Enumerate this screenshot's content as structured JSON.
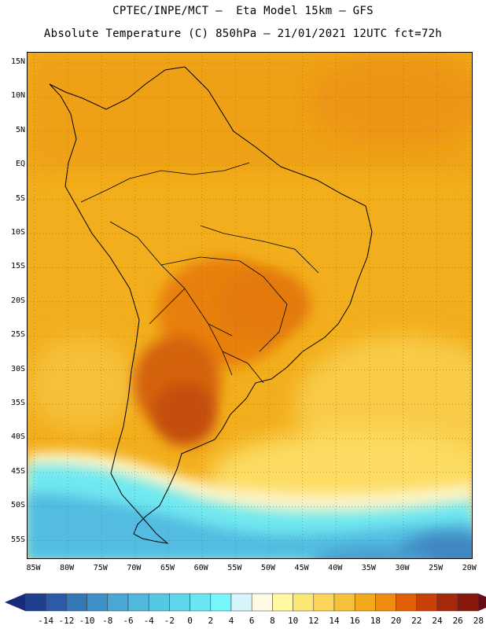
{
  "header": {
    "line1": "CPTEC/INPE/MCT –  Eta Model 15km – GFS",
    "line2": "Absolute Temperature (C) 850hPa – 21/01/2021 12UTC fct=72h"
  },
  "map": {
    "lat_labels": [
      "15N",
      "10N",
      "5N",
      "EQ",
      "5S",
      "10S",
      "15S",
      "20S",
      "25S",
      "30S",
      "35S",
      "40S",
      "45S",
      "50S",
      "55S"
    ],
    "lon_labels": [
      "85W",
      "80W",
      "75W",
      "70W",
      "65W",
      "60W",
      "55W",
      "50W",
      "45W",
      "40W",
      "35W",
      "30W",
      "25W",
      "20W"
    ],
    "lat_values": [
      15,
      10,
      5,
      0,
      -5,
      -10,
      -15,
      -20,
      -25,
      -30,
      -35,
      -40,
      -45,
      -50,
      -55
    ],
    "lon_values": [
      -85,
      -80,
      -75,
      -70,
      -65,
      -60,
      -55,
      -50,
      -45,
      -40,
      -35,
      -30,
      -25,
      -20
    ],
    "extent": {
      "lon_min": -86,
      "lon_max": -19.5,
      "lat_min": -57.8,
      "lat_max": 16.5
    }
  },
  "legend": {
    "labels": [
      "-14",
      "-12",
      "-10",
      "-8",
      "-6",
      "-4",
      "-2",
      "0",
      "2",
      "4",
      "6",
      "8",
      "10",
      "12",
      "14",
      "16",
      "18",
      "20",
      "22",
      "24",
      "26",
      "28"
    ],
    "colors": [
      "#1f3f8f",
      "#2a5aa8",
      "#3578b8",
      "#3f90c6",
      "#4aa6d2",
      "#50b8dc",
      "#56c8e4",
      "#5ed6ec",
      "#6ae6f2",
      "#76f6f8",
      "#d6f6fc",
      "#fefae4",
      "#fff8a0",
      "#fde678",
      "#fcd65a",
      "#f6c23c",
      "#f2aa1a",
      "#ee8c10",
      "#e06006",
      "#c84008",
      "#a4280a",
      "#86180c"
    ],
    "low_arrow_color": "#1a2a7a",
    "high_arrow_color": "#6a0a14"
  }
}
